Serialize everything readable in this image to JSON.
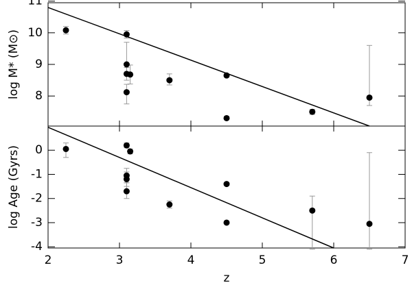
{
  "chart_data": [
    {
      "type": "scatter",
      "ylabel": "log M* (M⊙)",
      "xlim": [
        2,
        7
      ],
      "xticks": [
        2,
        3,
        4,
        5,
        6,
        7
      ],
      "ylim": [
        7.05,
        10.95
      ],
      "yticks": [
        8,
        9,
        10,
        11
      ],
      "points": {
        "color": "#000000",
        "error_color": "#999999",
        "x": [
          2.25,
          3.1,
          3.1,
          3.1,
          3.15,
          3.1,
          3.7,
          4.5,
          4.5,
          5.7,
          6.5
        ],
        "y": [
          10.08,
          9.95,
          9.0,
          8.7,
          8.68,
          8.12,
          8.5,
          8.65,
          7.3,
          7.5,
          7.95
        ],
        "err_minus": [
          0.12,
          0.12,
          0.3,
          0.2,
          0.3,
          0.37,
          0.15,
          0.05,
          0.05,
          0.08,
          0.25
        ],
        "err_plus": [
          0.12,
          0.12,
          0.7,
          0.2,
          0.3,
          0.25,
          0.2,
          0.05,
          0.05,
          0.08,
          1.65
        ]
      },
      "fit": {
        "color": "#000000",
        "x": [
          2,
          6.5
        ],
        "y": [
          10.8,
          7.05
        ]
      }
    },
    {
      "type": "scatter",
      "ylabel": "log Age (Gyrs)",
      "xlabel": "z",
      "xlim": [
        2,
        7
      ],
      "xticks": [
        2,
        3,
        4,
        5,
        6,
        7
      ],
      "ylim": [
        -4.05,
        1.0
      ],
      "yticks": [
        -4,
        -3,
        -2,
        -1,
        0
      ],
      "points": {
        "color": "#000000",
        "error_color": "#999999",
        "x": [
          2.25,
          3.1,
          3.15,
          3.1,
          3.1,
          3.1,
          3.7,
          4.5,
          4.5,
          5.7,
          6.5
        ],
        "y": [
          0.05,
          0.2,
          -0.05,
          -1.05,
          -1.2,
          -1.7,
          -2.25,
          -1.4,
          -3.0,
          -2.5,
          -3.05
        ],
        "err_minus": [
          0.35,
          0.1,
          0.1,
          0.3,
          0.3,
          0.3,
          0.15,
          0.05,
          0.05,
          1.6,
          1.05
        ],
        "err_plus": [
          0.25,
          0.1,
          0.1,
          0.3,
          0.3,
          0.35,
          0.15,
          0.05,
          0.05,
          0.6,
          2.95
        ]
      },
      "fit": {
        "color": "#000000",
        "x": [
          2,
          6
        ],
        "y": [
          0.95,
          -4.05
        ]
      }
    }
  ]
}
